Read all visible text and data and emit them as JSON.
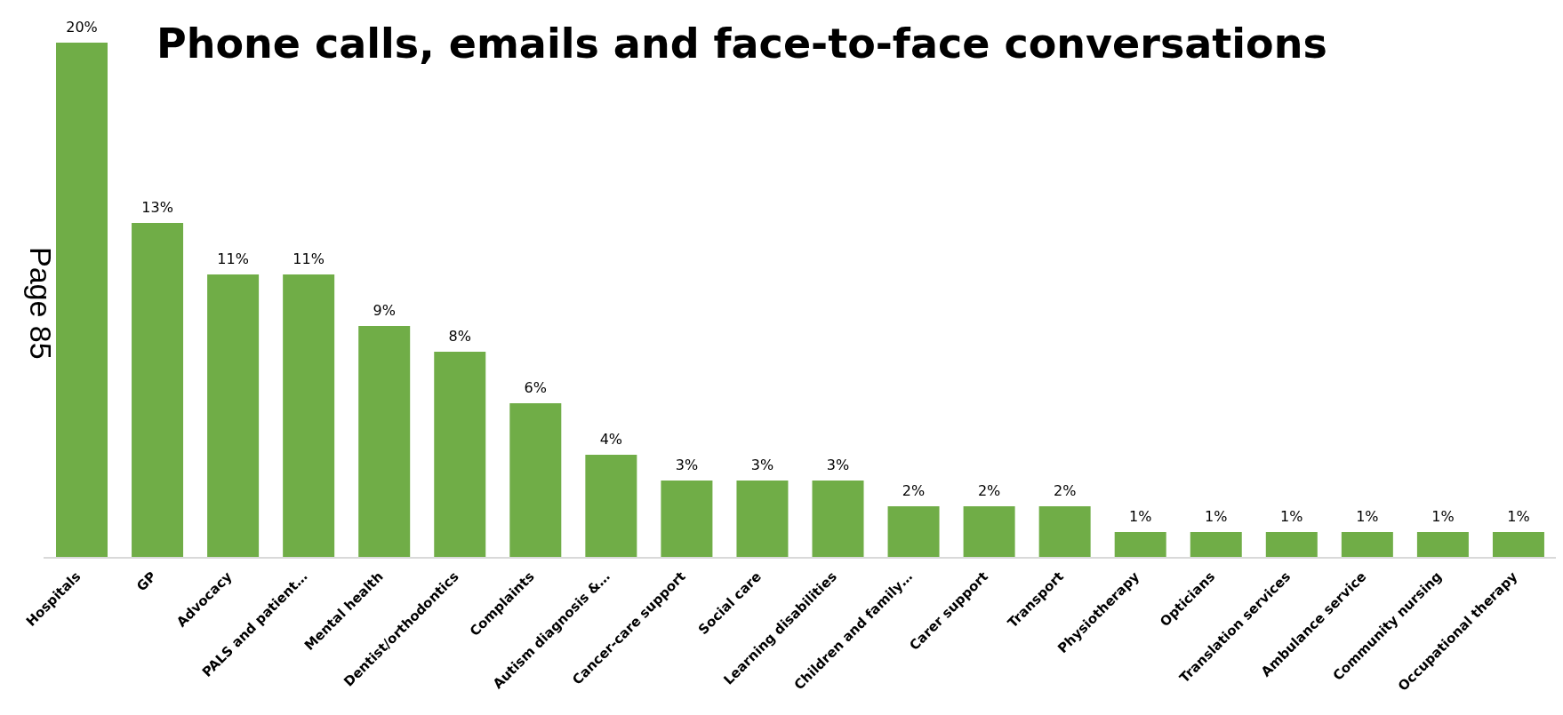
{
  "chart_data": {
    "type": "bar",
    "title": "Phone calls, emails and face-to-face conversations",
    "categories": [
      "Hospitals",
      "GP",
      "Advocacy",
      "PALS and patient…",
      "Mental health",
      "Dentist/orthodontics",
      "Complaints",
      "Autism diagnosis &…",
      "Cancer-care support",
      "Social care",
      "Learning disabilities",
      "Children and family…",
      "Carer support",
      "Transport",
      "Physiotherapy",
      "Opticians",
      "Translation services",
      "Ambulance service",
      "Community nursing",
      "Occupational therapy"
    ],
    "values": [
      20,
      13,
      11,
      11,
      9,
      8,
      6,
      4,
      3,
      3,
      3,
      2,
      2,
      2,
      1,
      1,
      1,
      1,
      1,
      1
    ],
    "value_labels": [
      "20%",
      "13%",
      "11%",
      "11%",
      "9%",
      "8%",
      "6%",
      "4%",
      "3%",
      "3%",
      "3%",
      "2%",
      "2%",
      "2%",
      "1%",
      "1%",
      "1%",
      "1%",
      "1%",
      "1%"
    ],
    "color": "#70ad47",
    "ylim": [
      0,
      20
    ],
    "grid": false,
    "annotations": [
      "Page 85"
    ]
  }
}
